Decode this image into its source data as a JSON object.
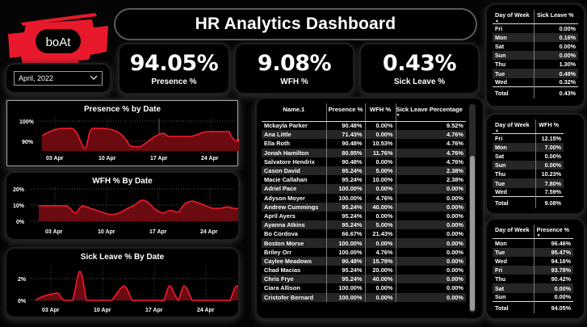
{
  "brand": {
    "logo_text": "boAt",
    "accent": "#e8192c"
  },
  "header": {
    "title": "HR Analytics Dashboard"
  },
  "filter": {
    "month_selected": "April, 2022"
  },
  "kpis": [
    {
      "value": "94.05%",
      "label": "Presence %"
    },
    {
      "value": "9.08%",
      "label": "WFH %"
    },
    {
      "value": "0.43%",
      "label": "Sick Leave %"
    }
  ],
  "charts": {
    "presence": {
      "title": "Presence % by Date",
      "y_ticks": [
        "100%",
        "90%"
      ],
      "x_ticks": [
        "03 Apr",
        "10 Apr",
        "17 Apr",
        "24 Apr"
      ]
    },
    "wfh": {
      "title": "WFH % By Date",
      "y_ticks": [
        "20%",
        "10%",
        "0%"
      ],
      "x_ticks": [
        "03 Apr",
        "10 Apr",
        "17 Apr",
        "24 Apr"
      ]
    },
    "sick": {
      "title": "Sick Leave % By Date",
      "y_ticks": [
        "2%",
        "0%"
      ],
      "x_ticks": [
        "03 Apr",
        "10 Apr",
        "17 Apr",
        "24 Apr"
      ]
    }
  },
  "chart_data": [
    {
      "type": "area",
      "title": "Presence % by Date",
      "xlabel": "",
      "ylabel": "",
      "x": [
        "01 Apr",
        "04 Apr",
        "05 Apr",
        "06 Apr",
        "07 Apr",
        "08 Apr",
        "11 Apr",
        "12 Apr",
        "13 Apr",
        "14 Apr",
        "15 Apr",
        "18 Apr",
        "19 Apr",
        "20 Apr",
        "21 Apr",
        "22 Apr",
        "25 Apr",
        "26 Apr",
        "27 Apr",
        "28 Apr",
        "29 Apr"
      ],
      "values": [
        93.5,
        97.5,
        97.5,
        88.0,
        97.5,
        97.5,
        96.0,
        93.5,
        88.5,
        88.5,
        95.5,
        96.5,
        93.5,
        93.5,
        93.5,
        95.5,
        96.0,
        96.0,
        92.0,
        96.5,
        96.5
      ],
      "ylim": [
        85,
        100
      ],
      "y_ticks": [
        "90%",
        "100%"
      ],
      "x_ticks": [
        "03 Apr",
        "10 Apr",
        "17 Apr",
        "24 Apr"
      ],
      "grid": true
    },
    {
      "type": "area",
      "title": "WFH % By Date",
      "xlabel": "",
      "ylabel": "",
      "x": [
        "01 Apr",
        "04 Apr",
        "05 Apr",
        "06 Apr",
        "07 Apr",
        "08 Apr",
        "11 Apr",
        "12 Apr",
        "13 Apr",
        "14 Apr",
        "15 Apr",
        "18 Apr",
        "19 Apr",
        "20 Apr",
        "21 Apr",
        "22 Apr",
        "25 Apr",
        "26 Apr",
        "27 Apr",
        "28 Apr",
        "29 Apr"
      ],
      "values": [
        9.5,
        9.5,
        5.5,
        9.5,
        7.5,
        4.0,
        4.5,
        8.5,
        13.0,
        11.5,
        6.0,
        7.0,
        5.5,
        13.5,
        12.5,
        10.0,
        9.5,
        11.0,
        10.0,
        16.5,
        16.5
      ],
      "ylim": [
        0,
        20
      ],
      "y_ticks": [
        "0%",
        "10%",
        "20%"
      ],
      "x_ticks": [
        "03 Apr",
        "10 Apr",
        "17 Apr",
        "24 Apr"
      ],
      "grid": true
    },
    {
      "type": "area",
      "title": "Sick Leave % By Date",
      "xlabel": "",
      "ylabel": "",
      "x": [
        "01 Apr",
        "04 Apr",
        "05 Apr",
        "06 Apr",
        "07 Apr",
        "08 Apr",
        "11 Apr",
        "12 Apr",
        "13 Apr",
        "14 Apr",
        "15 Apr",
        "18 Apr",
        "19 Apr",
        "20 Apr",
        "21 Apr",
        "22 Apr",
        "25 Apr",
        "26 Apr",
        "27 Apr",
        "28 Apr",
        "29 Apr"
      ],
      "values": [
        0.0,
        0.7,
        0.0,
        2.6,
        0.0,
        0.0,
        0.0,
        1.3,
        0.0,
        0.0,
        0.0,
        1.3,
        0.0,
        1.3,
        0.0,
        0.0,
        0.0,
        0.0,
        0.0,
        1.3,
        0.0
      ],
      "ylim": [
        0,
        3
      ],
      "y_ticks": [
        "0%",
        "2%"
      ],
      "x_ticks": [
        "03 Apr",
        "10 Apr",
        "17 Apr",
        "24 Apr"
      ],
      "grid": true
    }
  ],
  "employee_table": {
    "columns": [
      "Name.1",
      "Presence %",
      "WFH %",
      "Sick Leave Percentage"
    ],
    "sort_column": "Sick Leave Percentage",
    "rows": [
      [
        "Mckayla Parker",
        "90.48%",
        "0.00%",
        "9.52%"
      ],
      [
        "Ana Little",
        "71.43%",
        "0.00%",
        "4.76%"
      ],
      [
        "Ella Roth",
        "90.48%",
        "10.53%",
        "4.76%"
      ],
      [
        "Jonah Hamilton",
        "80.95%",
        "11.76%",
        "4.76%"
      ],
      [
        "Salvatore Hendrix",
        "90.48%",
        "0.00%",
        "4.76%"
      ],
      [
        "Cason David",
        "95.24%",
        "5.00%",
        "2.38%"
      ],
      [
        "Macie Callahan",
        "95.24%",
        "10.00%",
        "2.38%"
      ],
      [
        "Adriel Pace",
        "100.00%",
        "0.00%",
        "0.00%"
      ],
      [
        "Adyson Moyer",
        "100.00%",
        "4.76%",
        "0.00%"
      ],
      [
        "Andrew Cummings",
        "95.24%",
        "40.00%",
        "0.00%"
      ],
      [
        "April Ayers",
        "95.24%",
        "0.00%",
        "0.00%"
      ],
      [
        "Ayanna Atkins",
        "95.24%",
        "5.00%",
        "0.00%"
      ],
      [
        "Bo Cordova",
        "66.67%",
        "21.43%",
        "0.00%"
      ],
      [
        "Boston Morse",
        "100.00%",
        "0.00%",
        "0.00%"
      ],
      [
        "Briley Orr",
        "100.00%",
        "4.76%",
        "0.00%"
      ],
      [
        "Caylee Meadows",
        "90.48%",
        "15.79%",
        "0.00%"
      ],
      [
        "Chad Macias",
        "95.24%",
        "20.00%",
        "0.00%"
      ],
      [
        "Chris Frye",
        "95.24%",
        "40.00%",
        "0.00%"
      ],
      [
        "Ciara Allison",
        "100.00%",
        "0.00%",
        "0.00%"
      ],
      [
        "Cristofer Bernard",
        "100.00%",
        "0.00%",
        "0.00%"
      ]
    ]
  },
  "sick_by_day": {
    "columns": [
      "Day of Week",
      "Sick Leave %"
    ],
    "sort_column": "Day of Week",
    "rows": [
      [
        "Fri",
        "0.00%"
      ],
      [
        "Mon",
        "0.16%"
      ],
      [
        "Sat",
        "0.00%"
      ],
      [
        "Sun",
        "0.00%"
      ],
      [
        "Thu",
        "1.30%"
      ],
      [
        "Tue",
        "0.49%"
      ],
      [
        "Wed",
        "0.32%"
      ]
    ],
    "total": [
      "Total",
      "0.43%"
    ]
  },
  "wfh_by_day": {
    "columns": [
      "Day of Week",
      "WFH %"
    ],
    "sort_column": "Day of Week",
    "rows": [
      [
        "Fri",
        "12.15%"
      ],
      [
        "Mon",
        "7.00%"
      ],
      [
        "Sat",
        "0.00%"
      ],
      [
        "Sun",
        "0.00%"
      ],
      [
        "Thu",
        "10.23%"
      ],
      [
        "Tue",
        "7.80%"
      ],
      [
        "Wed",
        "7.59%"
      ]
    ],
    "total": [
      "Total",
      "9.08%"
    ]
  },
  "presence_by_day": {
    "columns": [
      "Day of Week",
      "Presence %"
    ],
    "sort_column": "Presence %",
    "rows": [
      [
        "Mon",
        "96.46%"
      ],
      [
        "Tue",
        "95.47%"
      ],
      [
        "Wed",
        "94.16%"
      ],
      [
        "Fri",
        "93.78%"
      ],
      [
        "Thu",
        "90.42%"
      ],
      [
        "Sat",
        "0.00%"
      ],
      [
        "Sun",
        "0.00%"
      ]
    ],
    "total": [
      "Total",
      "94.05%"
    ]
  }
}
